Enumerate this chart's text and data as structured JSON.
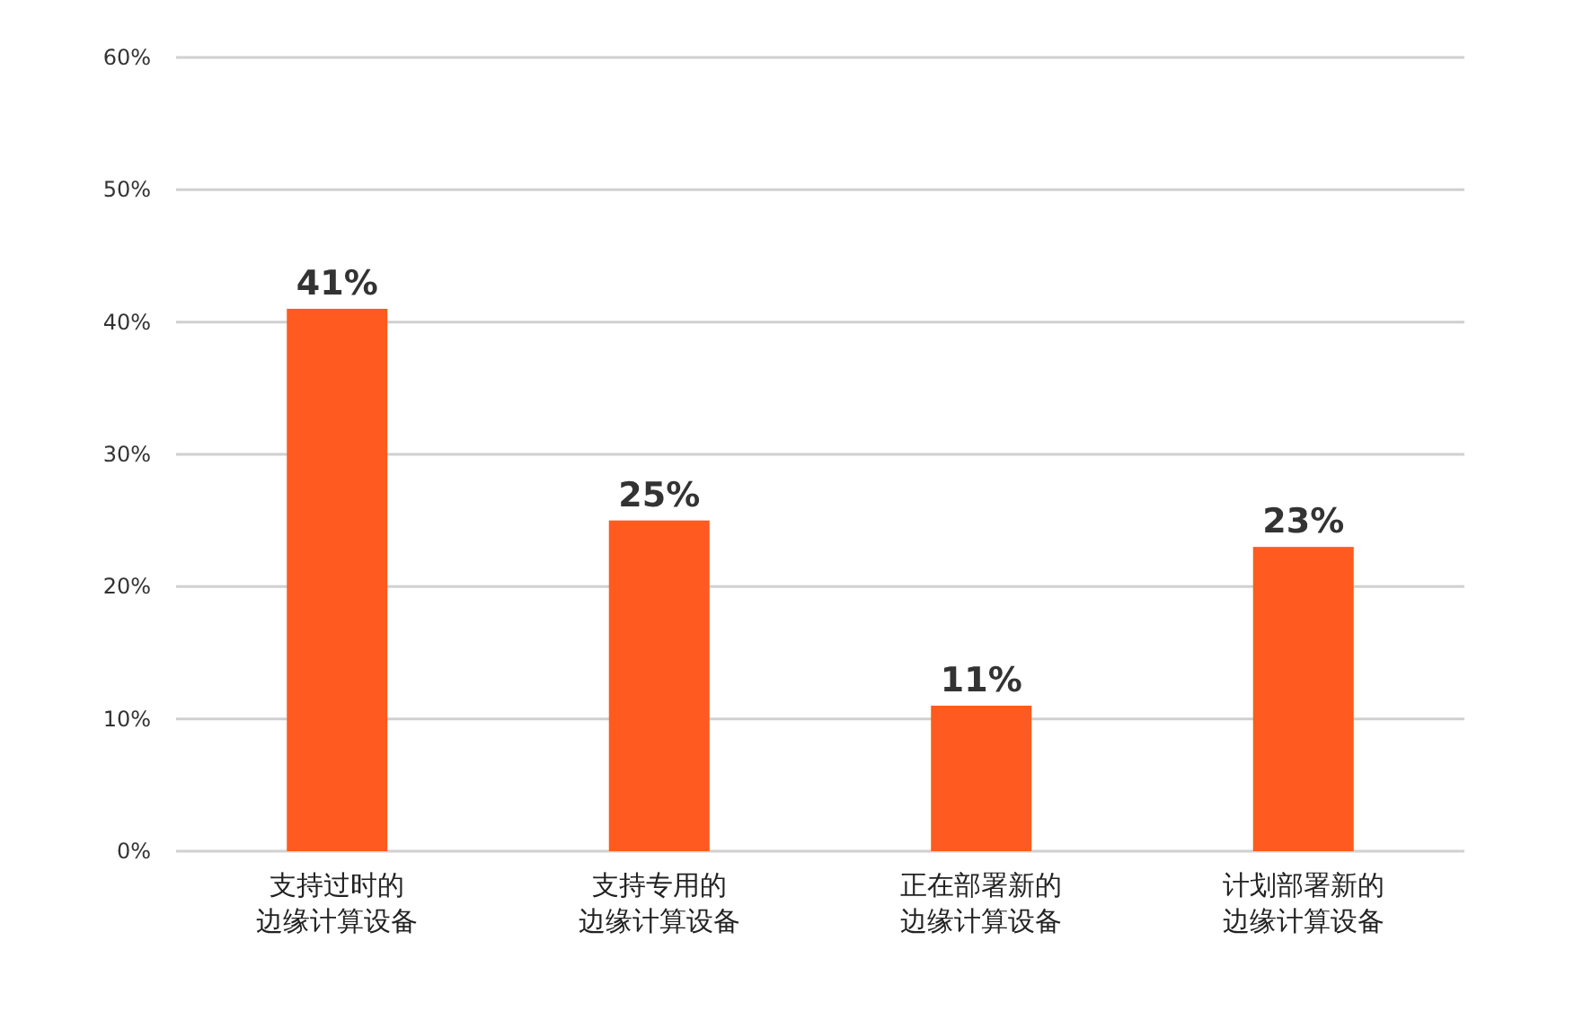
{
  "chart_data": {
    "type": "bar",
    "categories": [
      "支持过时的边缘计算设备",
      "支持专用的边缘计算设备",
      "正在部署新的边缘计算设备",
      "计划部署新的边缘计算设备"
    ],
    "values": [
      41,
      25,
      11,
      23
    ],
    "color": "#ff5a1f",
    "value_labels": [
      "41%",
      "25%",
      "11%",
      "23%"
    ],
    "ylim": [
      0,
      60
    ],
    "yticks": [
      {
        "value": 0,
        "label": "0%"
      },
      {
        "value": 10,
        "label": "10%"
      },
      {
        "value": 20,
        "label": "20%"
      },
      {
        "value": 30,
        "label": "30%"
      },
      {
        "value": 40,
        "label": "40%"
      },
      {
        "value": 50,
        "label": "50%"
      },
      {
        "value": 60,
        "label": "60%"
      }
    ],
    "grid": "y"
  }
}
